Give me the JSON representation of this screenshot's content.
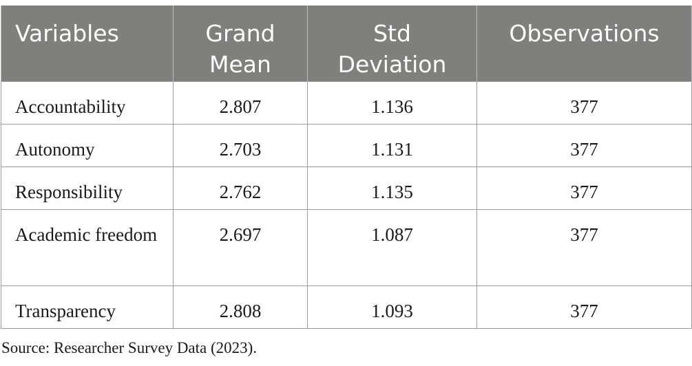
{
  "table": {
    "headers": [
      "Variables",
      "Grand Mean",
      "Std Deviation",
      "Observations"
    ],
    "rows": [
      {
        "variable": "Accountability",
        "grand_mean": "2.807",
        "std_deviation": "1.136",
        "observations": "377"
      },
      {
        "variable": "Autonomy",
        "grand_mean": "2.703",
        "std_deviation": "1.131",
        "observations": "377"
      },
      {
        "variable": "Responsibility",
        "grand_mean": "2.762",
        "std_deviation": "1.135",
        "observations": "377"
      },
      {
        "variable": "Academic freedom",
        "grand_mean": "2.697",
        "std_deviation": "1.087",
        "observations": "377"
      },
      {
        "variable": "Transparency",
        "grand_mean": "2.808",
        "std_deviation": "1.093",
        "observations": "377"
      }
    ]
  },
  "source_note": "Source: Researcher Survey Data (2023).",
  "colors": {
    "header_background": "#7f7f7e",
    "header_text": "#ffffff",
    "grid_lines": "#9a9a9a",
    "body_text": "#1a1a1a"
  }
}
